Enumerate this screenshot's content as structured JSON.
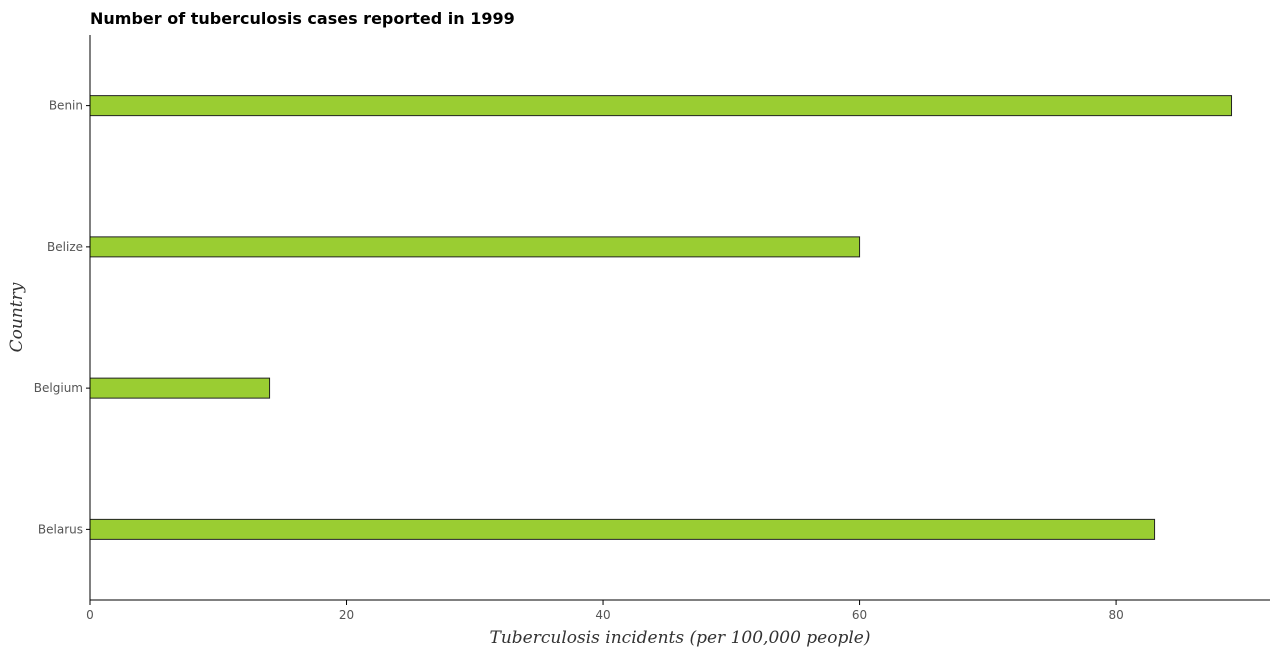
{
  "chart_data": {
    "type": "bar",
    "orientation": "horizontal",
    "title": "Number of tuberculosis cases reported in 1999",
    "xlabel": "Tuberculosis incidents (per 100,000 people)",
    "ylabel": "Country",
    "categories": [
      "Belarus",
      "Belgium",
      "Belize",
      "Benin"
    ],
    "values": [
      83,
      14,
      60,
      89
    ],
    "xlim": [
      0,
      92
    ],
    "xticks": [
      0,
      20,
      40,
      60,
      80
    ],
    "bar_color": "#9acd32",
    "grid": false,
    "legend": "none"
  }
}
